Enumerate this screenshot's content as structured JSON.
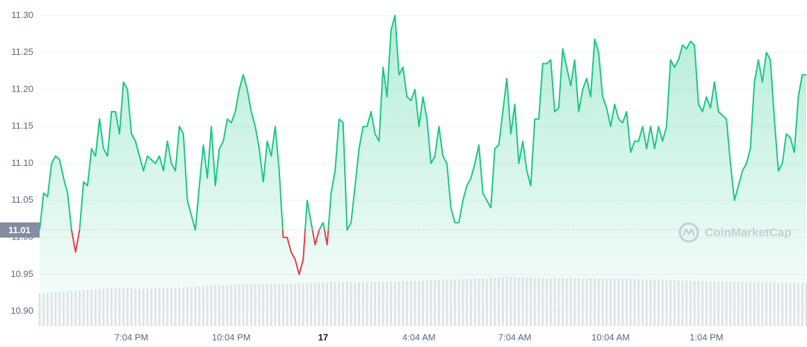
{
  "chart_data": {
    "type": "line",
    "categories": [
      null,
      null,
      null,
      null,
      null,
      null,
      null,
      null,
      null,
      null,
      null,
      null,
      null,
      null,
      null,
      null,
      null,
      null,
      null,
      null,
      null,
      null,
      null,
      "7:04 PM",
      null,
      null,
      null,
      null,
      null,
      null,
      null,
      null,
      null,
      null,
      null,
      null,
      null,
      null,
      null,
      null,
      null,
      null,
      null,
      null,
      null,
      null,
      null,
      null,
      "10:04 PM",
      null,
      null,
      null,
      null,
      null,
      null,
      null,
      null,
      null,
      null,
      null,
      null,
      null,
      null,
      null,
      null,
      null,
      null,
      null,
      null,
      null,
      null,
      "17",
      null,
      null,
      null,
      null,
      null,
      null,
      null,
      null,
      null,
      null,
      null,
      null,
      null,
      null,
      null,
      null,
      null,
      null,
      null,
      null,
      null,
      null,
      null,
      "4:04 AM",
      null,
      null,
      null,
      null,
      null,
      null,
      null,
      null,
      null,
      null,
      null,
      null,
      null,
      null,
      null,
      null,
      null,
      null,
      null,
      null,
      null,
      null,
      null,
      "7:04 AM",
      null,
      null,
      null,
      null,
      null,
      null,
      null,
      null,
      null,
      null,
      null,
      null,
      null,
      null,
      null,
      null,
      null,
      null,
      null,
      null,
      null,
      null,
      null,
      "10:04 AM",
      null,
      null,
      null,
      null,
      null,
      null,
      null,
      null,
      null,
      null,
      null,
      null,
      null,
      null,
      null,
      null,
      null,
      null,
      null,
      null,
      null,
      null,
      null,
      "1:04 PM",
      null,
      null,
      null,
      null,
      null,
      null,
      null,
      null,
      null,
      null,
      null,
      null,
      null,
      null,
      null,
      null,
      null,
      null,
      null,
      null,
      null,
      null,
      null,
      null,
      null
    ],
    "series": [
      {
        "type": "line",
        "color": "#16c784",
        "down_color": "#ea3943",
        "values": [
          11.01,
          11.06,
          11.055,
          11.1,
          11.11,
          11.105,
          11.08,
          11.06,
          11.01,
          10.98,
          11.01,
          11.075,
          11.07,
          11.12,
          11.11,
          11.16,
          11.12,
          11.11,
          11.17,
          11.17,
          11.14,
          11.21,
          11.2,
          11.14,
          11.13,
          11.11,
          11.09,
          11.11,
          11.105,
          11.1,
          11.11,
          11.09,
          11.13,
          11.1,
          11.09,
          11.15,
          11.14,
          11.05,
          11.03,
          11.01,
          11.07,
          11.125,
          11.08,
          11.15,
          11.07,
          11.12,
          11.13,
          11.16,
          11.155,
          11.17,
          11.2,
          11.22,
          11.2,
          11.17,
          11.15,
          11.12,
          11.075,
          11.13,
          11.11,
          11.15,
          11.09,
          11.0,
          11.0,
          10.98,
          10.97,
          10.95,
          10.97,
          11.05,
          11.02,
          10.99,
          11.01,
          11.02,
          10.99,
          11.06,
          11.09,
          11.16,
          11.155,
          11.01,
          11.02,
          11.07,
          11.12,
          11.15,
          11.15,
          11.17,
          11.14,
          11.13,
          11.23,
          11.19,
          11.28,
          11.3,
          11.22,
          11.23,
          11.19,
          11.185,
          11.2,
          11.15,
          11.19,
          11.16,
          11.1,
          11.11,
          11.15,
          11.11,
          11.1,
          11.04,
          11.02,
          11.02,
          11.05,
          11.07,
          11.08,
          11.1,
          11.125,
          11.06,
          11.05,
          11.04,
          11.12,
          11.125,
          11.17,
          11.215,
          11.14,
          11.18,
          11.1,
          11.13,
          11.09,
          11.07,
          11.16,
          11.16,
          11.235,
          11.235,
          11.24,
          11.17,
          11.175,
          11.255,
          11.23,
          11.205,
          11.24,
          11.17,
          11.2,
          11.215,
          11.19,
          11.268,
          11.25,
          11.19,
          11.175,
          11.15,
          11.18,
          11.16,
          11.155,
          11.17,
          11.115,
          11.13,
          11.13,
          11.15,
          11.12,
          11.15,
          11.12,
          11.15,
          11.13,
          11.15,
          11.24,
          11.23,
          11.24,
          11.26,
          11.255,
          11.265,
          11.26,
          11.18,
          11.17,
          11.19,
          11.175,
          11.21,
          11.17,
          11.165,
          11.16,
          11.1,
          11.05,
          11.07,
          11.09,
          11.1,
          11.12,
          11.21,
          11.24,
          11.21,
          11.25,
          11.24,
          11.16,
          11.09,
          11.1,
          11.14,
          11.135,
          11.115,
          11.19,
          11.22,
          11.22
        ]
      },
      {
        "type": "bar",
        "color": "#dfe2e8",
        "axis": "y2",
        "values": [
          10.0,
          10.1,
          10.2,
          10.3,
          10.4,
          10.5,
          10.6,
          10.7,
          10.8,
          10.9,
          11.0,
          11.1,
          11.2,
          11.3,
          11.4,
          11.5,
          11.6,
          11.7,
          11.7,
          11.7,
          11.7,
          11.6,
          11.7,
          11.6,
          11.5,
          11.6,
          11.5,
          11.6,
          11.5,
          11.6,
          11.6,
          11.7,
          11.7,
          11.8,
          11.8,
          11.9,
          11.9,
          12.0,
          12.0,
          12.1,
          12.2,
          12.3,
          12.4,
          12.5,
          12.5,
          12.6,
          12.6,
          12.7,
          12.8,
          12.8,
          12.8,
          12.9,
          12.9,
          12.8,
          12.9,
          12.9,
          13.0,
          13.0,
          12.9,
          13.0,
          13.0,
          13.1,
          13.1,
          13.0,
          13.1,
          13.2,
          13.2,
          13.3,
          13.3,
          13.4,
          13.4,
          13.5,
          13.5,
          13.6,
          13.6,
          13.6,
          13.5,
          13.6,
          13.6,
          13.5,
          13.6,
          13.6,
          13.5,
          13.6,
          13.6,
          13.7,
          13.7,
          13.6,
          13.7,
          13.8,
          13.8,
          13.8,
          13.9,
          13.9,
          13.8,
          13.9,
          14.0,
          14.0,
          14.1,
          14.1,
          14.2,
          14.2,
          14.3,
          14.3,
          14.4,
          14.4,
          14.4,
          14.5,
          14.5,
          14.6,
          14.6,
          14.7,
          14.7,
          14.8,
          14.9,
          15.0,
          15.0,
          15.1,
          15.1,
          15.1,
          15.0,
          15.0,
          14.9,
          14.9,
          14.8,
          14.8,
          14.8,
          14.7,
          14.8,
          14.8,
          14.8,
          14.8,
          14.7,
          14.8,
          14.8,
          14.8,
          14.7,
          14.7,
          14.8,
          14.7,
          14.7,
          14.6,
          14.6,
          14.7,
          14.6,
          14.6,
          14.5,
          14.5,
          14.6,
          14.5,
          14.4,
          14.4,
          14.3,
          14.3,
          14.3,
          14.2,
          14.2,
          14.1,
          14.1,
          14.1,
          14.0,
          14.0,
          14.0,
          13.9,
          13.9,
          13.9,
          13.8,
          13.8,
          13.8,
          13.7,
          13.7,
          13.7,
          13.7,
          13.6,
          13.6,
          13.6,
          13.6,
          13.6,
          13.5,
          13.5,
          13.5,
          13.5,
          13.5,
          13.5,
          13.4,
          13.4,
          13.4,
          13.4,
          13.3,
          13.3,
          13.3,
          13.3,
          13.2
        ]
      }
    ],
    "baseline": 11.01,
    "ylim": [
      10.88,
      11.32
    ],
    "yticks": [
      {
        "value": 10.9,
        "label": "10.90"
      },
      {
        "value": 10.95,
        "label": "10.95"
      },
      {
        "value": 11.0,
        "label": "11.00"
      },
      {
        "value": 11.05,
        "label": "11.05"
      },
      {
        "value": 11.1,
        "label": "11.10"
      },
      {
        "value": 11.15,
        "label": "11.15"
      },
      {
        "value": 11.2,
        "label": "11.20"
      },
      {
        "value": 11.25,
        "label": "11.25"
      },
      {
        "value": 11.3,
        "label": "11.30"
      }
    ],
    "y2lim": [
      0,
      100
    ],
    "grid": true,
    "watermark": "CoinMarketCap"
  }
}
